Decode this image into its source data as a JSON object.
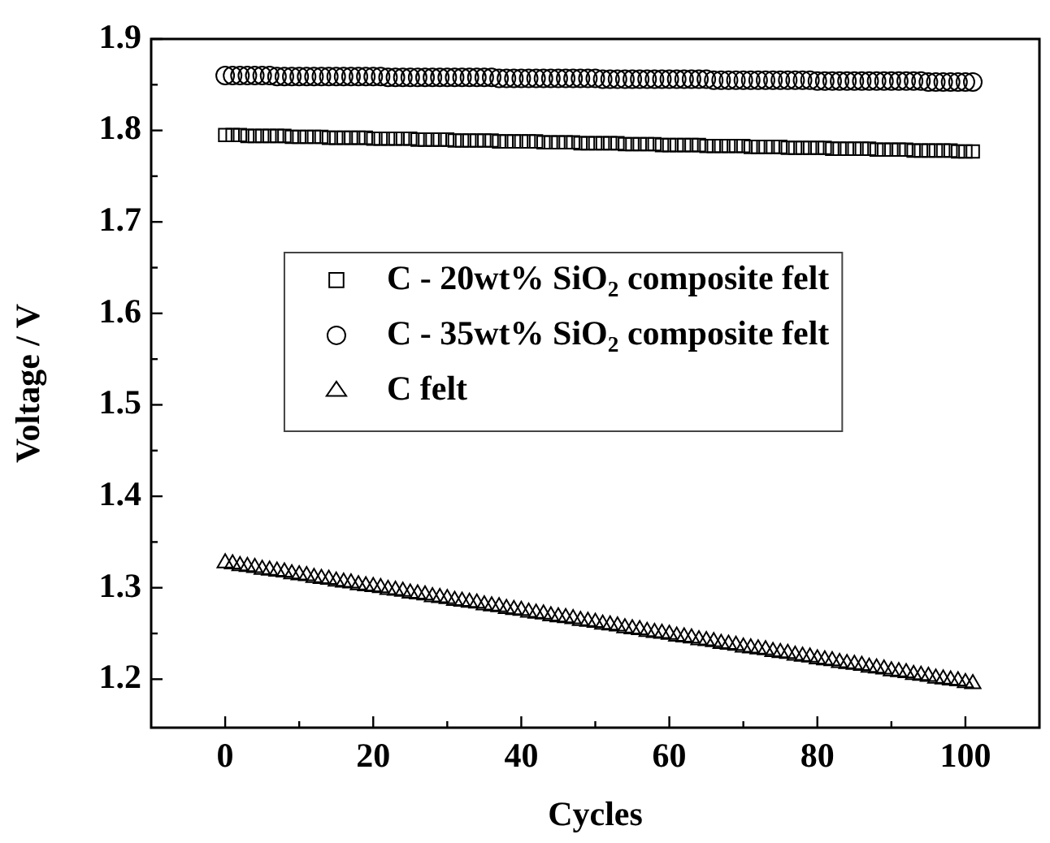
{
  "chart_data": {
    "type": "scatter",
    "xlabel": "Cycles",
    "ylabel": "Voltage / V",
    "xlim": [
      -10,
      110
    ],
    "ylim": [
      1.147,
      1.9
    ],
    "xticks": [
      0,
      {
        "value": 10,
        "label": null
      },
      20,
      {
        "value": 30,
        "label": null
      },
      40,
      {
        "value": 50,
        "label": null
      },
      60,
      {
        "value": 70,
        "label": null
      },
      80,
      {
        "value": 90,
        "label": null
      },
      100
    ],
    "yticks": [
      1.2,
      {
        "value": 1.25,
        "label": null
      },
      1.3,
      {
        "value": 1.35,
        "label": null
      },
      1.4,
      {
        "value": 1.45,
        "label": null
      },
      1.5,
      {
        "value": 1.55,
        "label": null
      },
      1.6,
      {
        "value": 1.65,
        "label": null
      },
      1.7,
      {
        "value": 1.75,
        "label": null
      },
      1.8,
      {
        "value": 1.85,
        "label": null
      },
      1.9
    ],
    "grid": false,
    "legend": "center left",
    "x": [
      0,
      1,
      2,
      3,
      4,
      5,
      6,
      7,
      8,
      9,
      10,
      11,
      12,
      13,
      14,
      15,
      16,
      17,
      18,
      19,
      20,
      21,
      22,
      23,
      24,
      25,
      26,
      27,
      28,
      29,
      30,
      31,
      32,
      33,
      34,
      35,
      36,
      37,
      38,
      39,
      40,
      41,
      42,
      43,
      44,
      45,
      46,
      47,
      48,
      49,
      50,
      51,
      52,
      53,
      54,
      55,
      56,
      57,
      58,
      59,
      60,
      61,
      62,
      63,
      64,
      65,
      66,
      67,
      68,
      69,
      70,
      71,
      72,
      73,
      74,
      75,
      76,
      77,
      78,
      79,
      80,
      81,
      82,
      83,
      84,
      85,
      86,
      87,
      88,
      89,
      90,
      91,
      92,
      93,
      94,
      95,
      96,
      97,
      98,
      99,
      100,
      101
    ],
    "series": [
      {
        "name": "C - 20wt% SiO$_{2}$ composite felt",
        "color": "#000000",
        "marker": "square",
        "values": [
          1.795,
          1.795,
          1.795,
          1.794,
          1.794,
          1.794,
          1.794,
          1.794,
          1.794,
          1.793,
          1.793,
          1.793,
          1.793,
          1.793,
          1.792,
          1.792,
          1.792,
          1.792,
          1.792,
          1.792,
          1.791,
          1.791,
          1.791,
          1.791,
          1.791,
          1.791,
          1.79,
          1.79,
          1.79,
          1.79,
          1.79,
          1.789,
          1.789,
          1.789,
          1.789,
          1.789,
          1.789,
          1.788,
          1.788,
          1.788,
          1.788,
          1.788,
          1.788,
          1.787,
          1.787,
          1.787,
          1.787,
          1.787,
          1.786,
          1.786,
          1.786,
          1.786,
          1.786,
          1.786,
          1.785,
          1.785,
          1.785,
          1.785,
          1.785,
          1.784,
          1.784,
          1.784,
          1.784,
          1.784,
          1.784,
          1.783,
          1.783,
          1.783,
          1.783,
          1.783,
          1.783,
          1.782,
          1.782,
          1.782,
          1.782,
          1.782,
          1.781,
          1.781,
          1.781,
          1.781,
          1.781,
          1.781,
          1.78,
          1.78,
          1.78,
          1.78,
          1.78,
          1.78,
          1.779,
          1.779,
          1.779,
          1.779,
          1.779,
          1.778,
          1.778,
          1.778,
          1.778,
          1.778,
          1.778,
          1.777,
          1.777,
          1.777
        ]
      },
      {
        "name": "C - 35wt% SiO$_{2}$ composite felt",
        "color": "#000000",
        "marker": "circle",
        "values": [
          1.86,
          1.86,
          1.86,
          1.86,
          1.86,
          1.86,
          1.86,
          1.859,
          1.859,
          1.859,
          1.859,
          1.859,
          1.859,
          1.859,
          1.859,
          1.859,
          1.859,
          1.859,
          1.859,
          1.859,
          1.859,
          1.859,
          1.858,
          1.858,
          1.858,
          1.858,
          1.858,
          1.858,
          1.858,
          1.858,
          1.858,
          1.858,
          1.858,
          1.858,
          1.858,
          1.858,
          1.858,
          1.857,
          1.857,
          1.857,
          1.857,
          1.857,
          1.857,
          1.857,
          1.857,
          1.857,
          1.857,
          1.857,
          1.857,
          1.857,
          1.857,
          1.856,
          1.856,
          1.856,
          1.856,
          1.856,
          1.856,
          1.856,
          1.856,
          1.856,
          1.856,
          1.856,
          1.856,
          1.856,
          1.856,
          1.856,
          1.855,
          1.855,
          1.855,
          1.855,
          1.855,
          1.855,
          1.855,
          1.855,
          1.855,
          1.855,
          1.855,
          1.855,
          1.855,
          1.855,
          1.854,
          1.854,
          1.854,
          1.854,
          1.854,
          1.854,
          1.854,
          1.854,
          1.854,
          1.854,
          1.854,
          1.854,
          1.854,
          1.854,
          1.854,
          1.853,
          1.853,
          1.853,
          1.853,
          1.853,
          1.853,
          1.853
        ]
      },
      {
        "name": "C felt",
        "color": "#000000",
        "marker": "triangle",
        "values": [
          1.327,
          1.326,
          1.324,
          1.323,
          1.322,
          1.32,
          1.319,
          1.318,
          1.317,
          1.315,
          1.314,
          1.313,
          1.311,
          1.31,
          1.309,
          1.307,
          1.306,
          1.305,
          1.303,
          1.302,
          1.301,
          1.3,
          1.298,
          1.297,
          1.296,
          1.294,
          1.293,
          1.292,
          1.29,
          1.289,
          1.288,
          1.286,
          1.285,
          1.284,
          1.283,
          1.281,
          1.28,
          1.279,
          1.277,
          1.276,
          1.275,
          1.273,
          1.272,
          1.271,
          1.269,
          1.268,
          1.267,
          1.266,
          1.264,
          1.263,
          1.262,
          1.26,
          1.259,
          1.258,
          1.256,
          1.255,
          1.254,
          1.252,
          1.251,
          1.25,
          1.249,
          1.247,
          1.246,
          1.245,
          1.243,
          1.242,
          1.241,
          1.239,
          1.238,
          1.237,
          1.235,
          1.234,
          1.233,
          1.232,
          1.23,
          1.229,
          1.228,
          1.226,
          1.225,
          1.224,
          1.222,
          1.221,
          1.22,
          1.218,
          1.217,
          1.216,
          1.215,
          1.213,
          1.212,
          1.211,
          1.209,
          1.208,
          1.207,
          1.205,
          1.204,
          1.203,
          1.201,
          1.2,
          1.199,
          1.198,
          1.196,
          1.195
        ]
      }
    ]
  }
}
